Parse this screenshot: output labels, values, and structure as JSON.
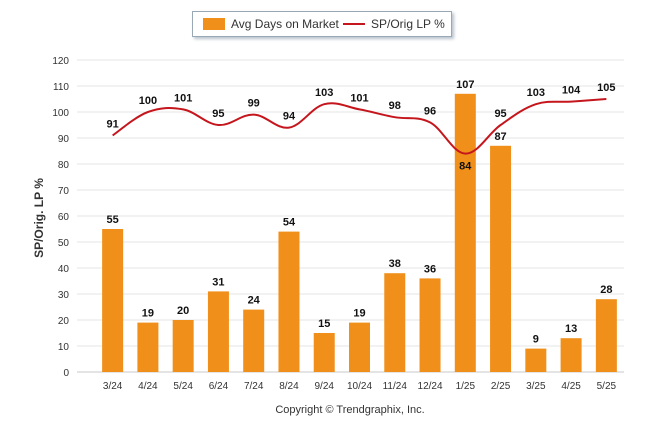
{
  "chart_data": {
    "type": "bar",
    "categories": [
      "3/24",
      "4/24",
      "5/24",
      "6/24",
      "7/24",
      "8/24",
      "9/24",
      "10/24",
      "11/24",
      "12/24",
      "1/25",
      "2/25",
      "3/25",
      "4/25",
      "5/25"
    ],
    "series": [
      {
        "name": "Avg Days on Market",
        "type": "bar",
        "color": "#f0901a",
        "values": [
          55,
          19,
          20,
          31,
          24,
          54,
          15,
          19,
          38,
          36,
          107,
          87,
          9,
          13,
          28
        ]
      },
      {
        "name": "SP/Orig LP %",
        "type": "line",
        "color": "#c4161c",
        "values": [
          91,
          100,
          101,
          95,
          99,
          94,
          103,
          101,
          98,
          96,
          84,
          95,
          103,
          104,
          105
        ]
      }
    ],
    "ylabel": "SP/Orig. LP %",
    "xlabel": "",
    "ylim": [
      0,
      120
    ],
    "yticks": [
      0,
      10,
      20,
      30,
      40,
      50,
      60,
      70,
      80,
      90,
      100,
      110,
      120
    ],
    "grid": true,
    "legend_position": "top-center"
  },
  "footer": {
    "copyright": "Copyright © Trendgraphix, Inc."
  }
}
